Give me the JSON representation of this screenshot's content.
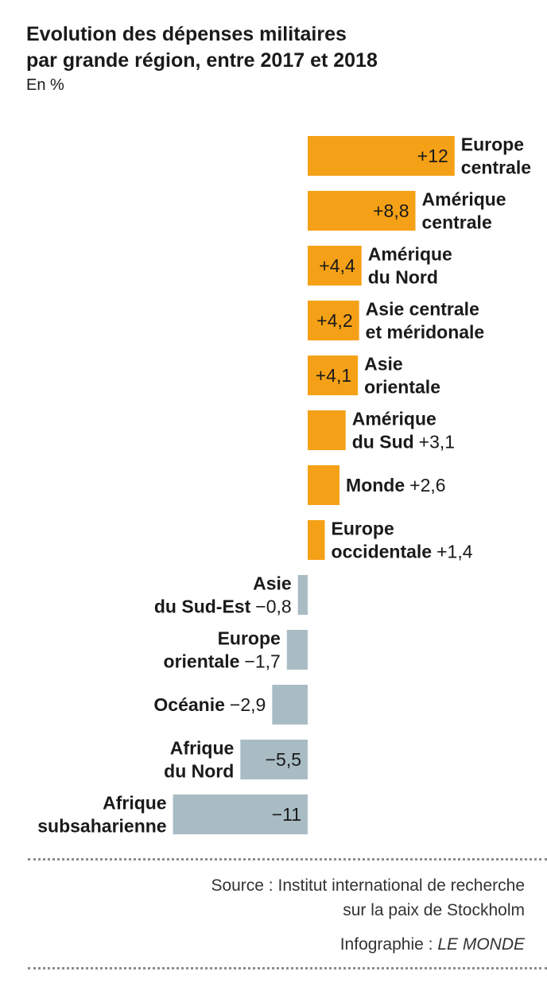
{
  "chart_data": {
    "type": "bar",
    "orientation": "horizontal",
    "title_lines": [
      "Evolution des dépenses militaires",
      "par grande région, entre 2017 et 2018"
    ],
    "subtitle": "En %",
    "xlim": [
      -12,
      12
    ],
    "colors": {
      "positive": "#f5a117",
      "negative": "#a9bcc4"
    },
    "bars": [
      {
        "label_lines": [
          "Europe",
          "centrale"
        ],
        "value": 12,
        "value_label": "+12"
      },
      {
        "label_lines": [
          "Amérique",
          "centrale"
        ],
        "value": 8.8,
        "value_label": "+8,8"
      },
      {
        "label_lines": [
          "Amérique",
          "du Nord"
        ],
        "value": 4.4,
        "value_label": "+4,4"
      },
      {
        "label_lines": [
          "Asie centrale",
          "et méridonale"
        ],
        "value": 4.2,
        "value_label": "+4,2"
      },
      {
        "label_lines": [
          "Asie",
          "orientale"
        ],
        "value": 4.1,
        "value_label": "+4,1"
      },
      {
        "label_lines": [
          "Amérique",
          "du Sud"
        ],
        "value": 3.1,
        "value_label": "+3,1"
      },
      {
        "label_lines": [
          "Monde"
        ],
        "value": 2.6,
        "value_label": "+2,6"
      },
      {
        "label_lines": [
          "Europe",
          "occidentale"
        ],
        "value": 1.4,
        "value_label": "+1,4"
      },
      {
        "label_lines": [
          "Asie",
          "du Sud-Est"
        ],
        "value": -0.8,
        "value_label": "−0,8"
      },
      {
        "label_lines": [
          "Europe",
          "orientale"
        ],
        "value": -1.7,
        "value_label": "−1,7"
      },
      {
        "label_lines": [
          "Océanie"
        ],
        "value": -2.9,
        "value_label": "−2,9"
      },
      {
        "label_lines": [
          "Afrique",
          "du Nord"
        ],
        "value": -5.5,
        "value_label": "−5,5"
      },
      {
        "label_lines": [
          "Afrique",
          "subsaharienne"
        ],
        "value": -11,
        "value_label": "−11"
      }
    ]
  },
  "footer": {
    "source_lines": [
      "Source : Institut international de recherche",
      "sur la paix de Stockholm"
    ],
    "credit_prefix": "Infographie : ",
    "credit_name": "LE MONDE"
  }
}
